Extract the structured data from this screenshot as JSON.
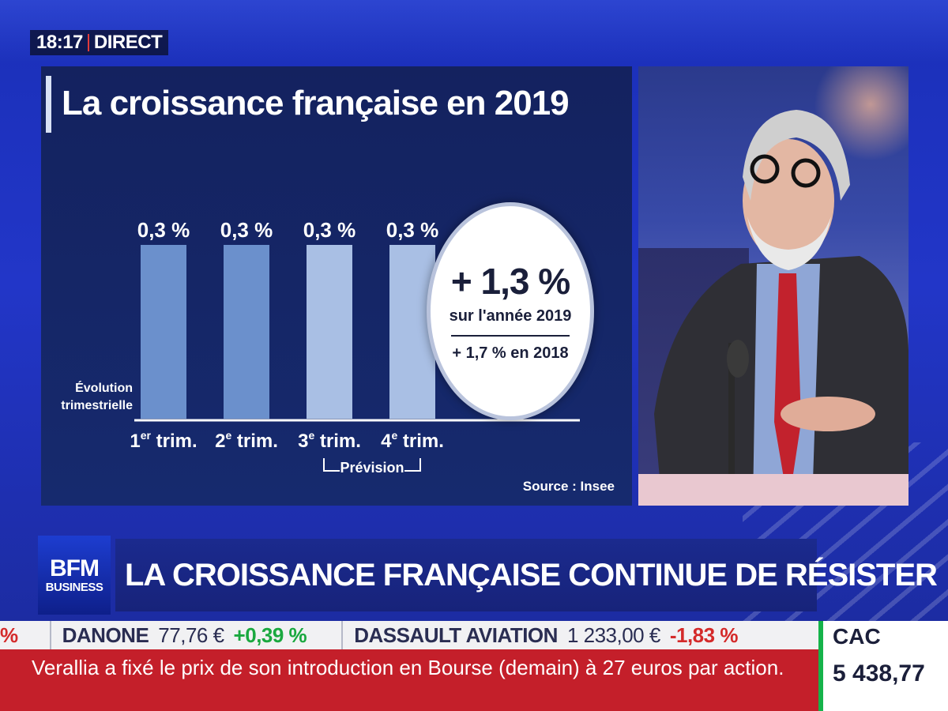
{
  "broadcast": {
    "time": "18:17",
    "live_label": "DIRECT",
    "channel_logo_top": "BFM",
    "channel_logo_bottom": "BUSINESS",
    "headline": "LA CROISSANCE FRANÇAISE CONTINUE DE RÉSISTER"
  },
  "graphic": {
    "title": "La croissance française en 2019",
    "y_caption_line1": "Évolution",
    "y_caption_line2": "trimestrielle",
    "forecast_label": "Prévision",
    "highlight_main": "+ 1,3 %",
    "highlight_sub": "sur l'année 2019",
    "highlight_previous": "+ 1,7 % en 2018",
    "source": "Source : Insee"
  },
  "chart_data": {
    "type": "bar",
    "title": "La croissance française en 2019",
    "categories": [
      {
        "num": "1",
        "sup": "er",
        "label": " trim."
      },
      {
        "num": "2",
        "sup": "e",
        "label": " trim."
      },
      {
        "num": "3",
        "sup": "e",
        "label": " trim."
      },
      {
        "num": "4",
        "sup": "e",
        "label": " trim."
      }
    ],
    "values": [
      0.3,
      0.3,
      0.3,
      0.3
    ],
    "value_labels": [
      "0,3 %",
      "0,3 %",
      "0,3 %",
      "0,3 %"
    ],
    "forecast": [
      false,
      false,
      true,
      true
    ],
    "colors": {
      "actual": "#6b90cc",
      "forecast": "#a9bfe4"
    },
    "ylabel": "Évolution trimestrielle",
    "ylim": [
      0,
      0.3
    ]
  },
  "ticker": {
    "edge_pct": "%",
    "stocks": [
      {
        "name": "DANONE",
        "value": "77,76 €",
        "change": "+0,39 %",
        "direction": "up"
      },
      {
        "name": "DASSAULT AVIATION",
        "value": "1 233,00 €",
        "change": "-1,83 %",
        "direction": "down"
      }
    ],
    "news": "Verallia a fixé le prix de son introduction en Bourse (demain) à 27 euros par action.",
    "index_name": "CAC",
    "index_value": "5 438,77"
  }
}
